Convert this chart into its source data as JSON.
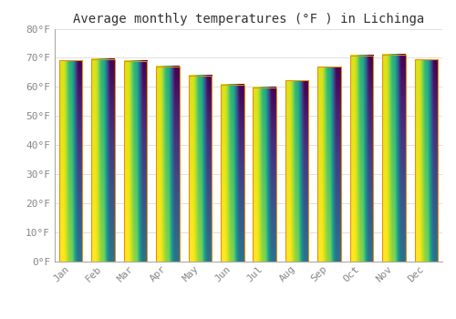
{
  "months": [
    "Jan",
    "Feb",
    "Mar",
    "Apr",
    "May",
    "Jun",
    "Jul",
    "Aug",
    "Sep",
    "Oct",
    "Nov",
    "Dec"
  ],
  "values": [
    69.1,
    69.6,
    68.9,
    67.1,
    63.9,
    60.8,
    59.9,
    62.2,
    66.9,
    70.9,
    71.1,
    69.4
  ],
  "bar_color_face": "#FFC125",
  "bar_color_edge": "#E8900A",
  "bar_gradient_top": "#F5A800",
  "bar_gradient_bottom": "#FFD966",
  "background_color": "#FFFFFF",
  "title": "Average monthly temperatures (°F ) in Lichinga",
  "title_fontsize": 10,
  "ylim": [
    0,
    80
  ],
  "yticks": [
    0,
    10,
    20,
    30,
    40,
    50,
    60,
    70,
    80
  ],
  "tick_label_color": "#888888",
  "grid_color": "#e0e0e0",
  "bar_width": 0.72
}
